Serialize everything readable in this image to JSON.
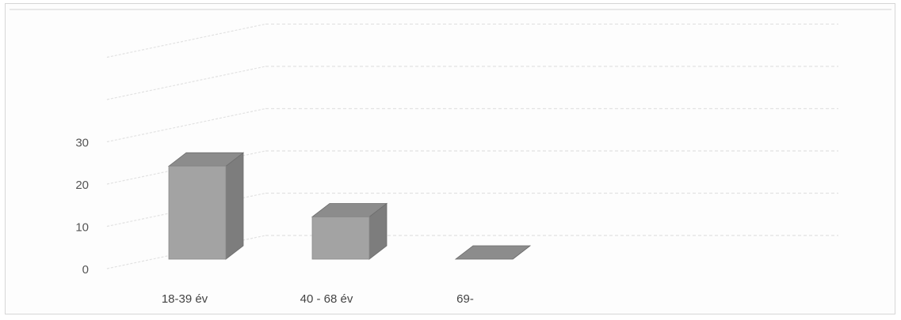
{
  "chart_data": {
    "type": "bar",
    "style": "3d-column",
    "categories": [
      "18-39 év",
      "40 - 68 év",
      "69-"
    ],
    "values": [
      22,
      10,
      0
    ],
    "yticks": [
      0,
      10,
      20,
      30
    ],
    "ylim": [
      0,
      50
    ],
    "title": "",
    "xlabel": "",
    "ylabel": "",
    "grid": true,
    "legend": "none",
    "colors": {
      "bar_front": "#a3a3a3",
      "bar_top": "#8c8c8c",
      "bar_side": "#7d7d7d",
      "grid": "#e2e2e2",
      "frame": "#d6d6d6"
    }
  }
}
